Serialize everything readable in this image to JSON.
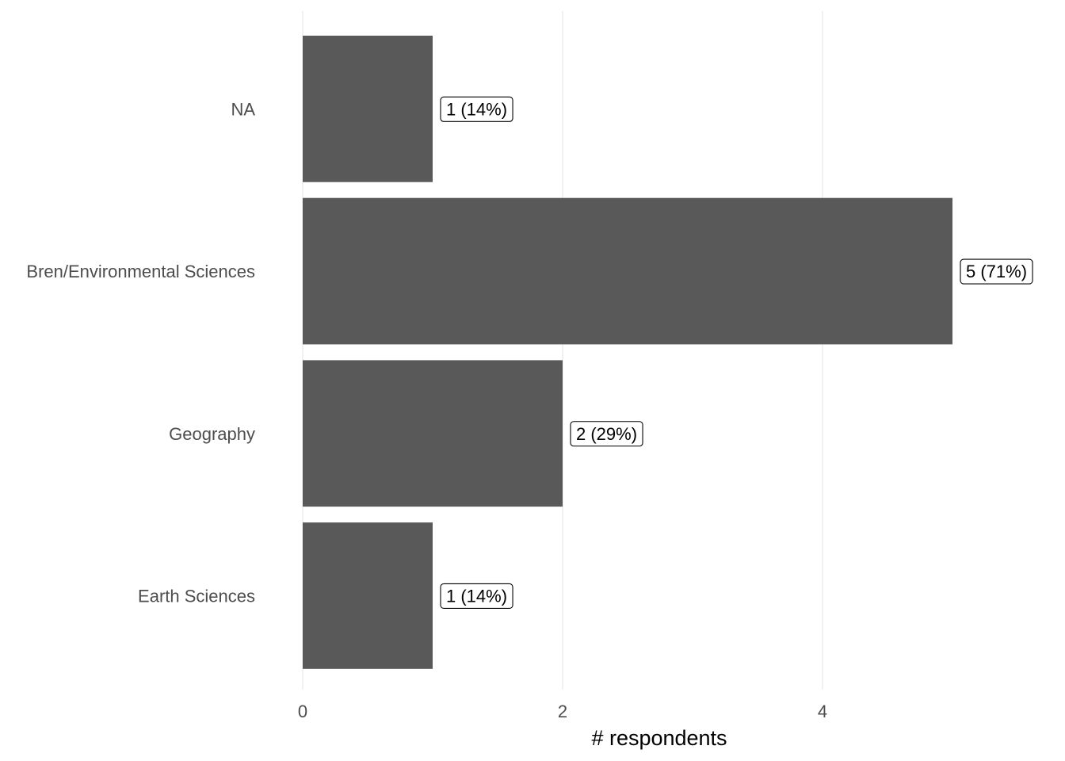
{
  "chart_data": {
    "type": "bar",
    "orientation": "horizontal",
    "categories": [
      "NA",
      "Bren/Environmental Sciences",
      "Geography",
      "Earth Sciences"
    ],
    "values": [
      1,
      5,
      2,
      1
    ],
    "data_labels": [
      "1 (14%)",
      "5 (71%)",
      "2 (29%)",
      "1 (14%)"
    ],
    "xlabel": "# respondents",
    "ylabel": "",
    "xlim": [
      0,
      5.5
    ],
    "x_ticks": [
      0,
      2,
      4
    ],
    "x_tick_labels": [
      "0",
      "2",
      "4"
    ],
    "grid": "vertical-major",
    "legend": "none",
    "colors": {
      "bar": "#595959",
      "grid": "#ebebeb",
      "label_text": "#4d4d4d"
    }
  }
}
